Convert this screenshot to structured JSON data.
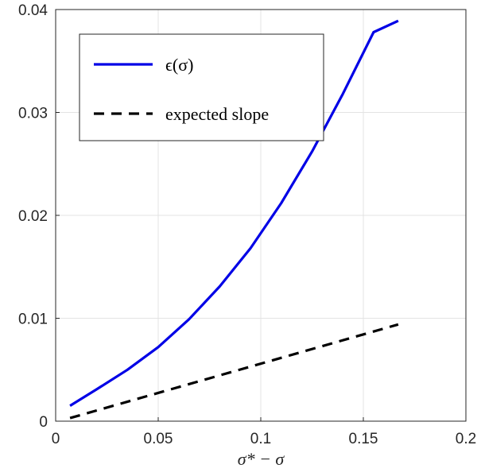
{
  "chart_data": {
    "type": "line",
    "xlabel": "σ* − σ",
    "ylabel": "",
    "xlim": [
      0,
      0.2
    ],
    "ylim": [
      0,
      0.04
    ],
    "xticks": [
      "0",
      "0.05",
      "0.1",
      "0.15",
      "0.2"
    ],
    "yticks": [
      "0",
      "0.01",
      "0.02",
      "0.03",
      "0.04"
    ],
    "grid": true,
    "legend_position": "top-left",
    "series": [
      {
        "name": "ϵ(σ)",
        "color": "#0000e6",
        "style": "solid",
        "x": [
          0.007,
          0.02,
          0.035,
          0.05,
          0.065,
          0.08,
          0.095,
          0.11,
          0.125,
          0.14,
          0.155,
          0.167
        ],
        "y": [
          0.0015,
          0.0031,
          0.005,
          0.0072,
          0.0099,
          0.0131,
          0.0168,
          0.0212,
          0.0262,
          0.0318,
          0.0378,
          0.0389
        ]
      },
      {
        "name": "expected slope",
        "color": "#000000",
        "style": "dashed",
        "x": [
          0.007,
          0.167
        ],
        "y": [
          0.0003,
          0.0094
        ]
      }
    ]
  }
}
